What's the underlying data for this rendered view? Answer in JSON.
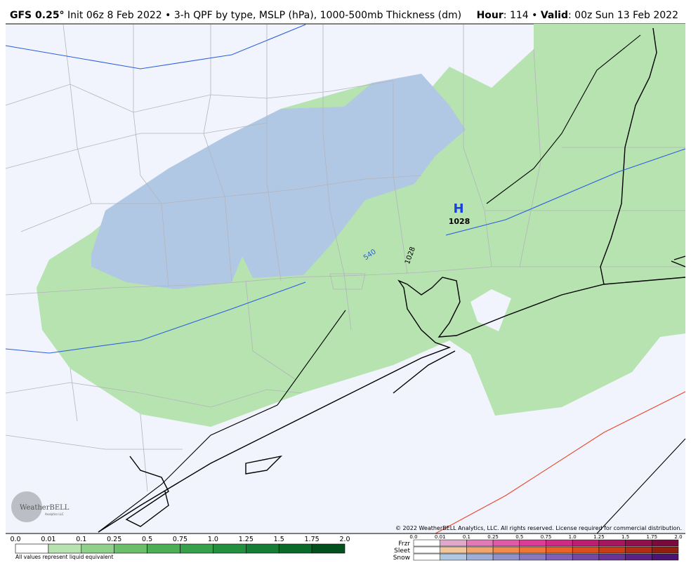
{
  "header": {
    "model": "GFS 0.25°",
    "description": "Init 06z 8 Feb 2022 • 3-h QPF by type, MSLP (hPa), 1000-500mb Thickness (dm)",
    "hour_label": "Hour",
    "hour_value": ": 114 •",
    "valid_label": "Valid",
    "valid_value": ": 00z Sun 13 Feb 2022"
  },
  "map": {
    "high_label": "H",
    "high_pressure": "1028",
    "thickness_label": "540",
    "isobar_label": "1028",
    "copyright": "© 2022 WeatherBELL Analytics, LLC. All rights reserved. License required for commercial distribution.",
    "logo": "WeatherBELL",
    "logo_sub": "Analytics LLC"
  },
  "legend": {
    "ticks": [
      "0.0",
      "0.01",
      "0.1",
      "0.25",
      "0.5",
      "0.75",
      "1.0",
      "1.25",
      "1.5",
      "1.75",
      "2.0"
    ],
    "colors": [
      "#ffffff",
      "#b6e3b0",
      "#8fd18a",
      "#6bbf6b",
      "#4caf55",
      "#36a04b",
      "#23903f",
      "#157d35",
      "#0a6a2b",
      "#03501f"
    ],
    "note": "All values represent liquid equivalent"
  },
  "type_legend": {
    "ticks": [
      "0.0",
      "0.01",
      "0.1",
      "0.25",
      "0.5",
      "0.75",
      "1.0",
      "1.25",
      "1.5",
      "1.75",
      "2.0"
    ],
    "rows": [
      {
        "name": "Frzr",
        "colors": [
          "#ffffff",
          "#e2a8cc",
          "#e27ab8",
          "#e05aa8",
          "#dc3c98",
          "#cf2a86",
          "#bd1e72",
          "#a8165f",
          "#90104e",
          "#7a0a3e"
        ]
      },
      {
        "name": "Sleet",
        "colors": [
          "#ffffff",
          "#f3c59a",
          "#f2a46e",
          "#f08a4e",
          "#ee7638",
          "#ea6226",
          "#de4e1c",
          "#c93c16",
          "#b02c12",
          "#921e0e"
        ]
      },
      {
        "name": "Snow",
        "colors": [
          "#ffffff",
          "#b0c8e4",
          "#9eaed8",
          "#9092cc",
          "#8878c0",
          "#8060b4",
          "#7648a6",
          "#6a3496",
          "#5a2284",
          "#4a1470"
        ]
      }
    ]
  }
}
